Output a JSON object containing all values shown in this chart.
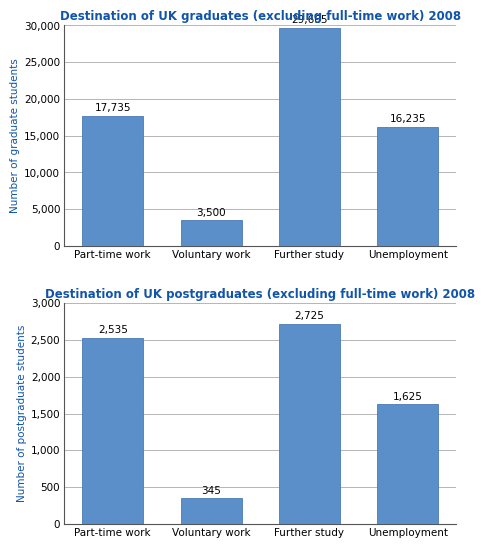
{
  "chart1": {
    "title": "Destination of UK graduates (excluding full-time work) 2008",
    "categories": [
      "Part-time work",
      "Voluntary work",
      "Further study",
      "Unemployment"
    ],
    "values": [
      17735,
      3500,
      29665,
      16235
    ],
    "labels": [
      "17,735",
      "3,500",
      "29,665",
      "16,235"
    ],
    "ylabel": "Number of graduate students",
    "ylim": [
      0,
      30000
    ],
    "yticks": [
      0,
      5000,
      10000,
      15000,
      20000,
      25000,
      30000
    ],
    "ytick_labels": [
      "0",
      "5,000",
      "10,000",
      "15,000",
      "20,000",
      "25,000",
      "30,000"
    ]
  },
  "chart2": {
    "title": "Destination of UK postgraduates (excluding full-time work) 2008",
    "categories": [
      "Part-time work",
      "Voluntary work",
      "Further study",
      "Unemployment"
    ],
    "values": [
      2535,
      345,
      2725,
      1625
    ],
    "labels": [
      "2,535",
      "345",
      "2,725",
      "1,625"
    ],
    "ylabel": "Number of postgraduate students",
    "ylim": [
      0,
      3000
    ],
    "yticks": [
      0,
      500,
      1000,
      1500,
      2000,
      2500,
      3000
    ],
    "ytick_labels": [
      "0",
      "500",
      "1,000",
      "1,500",
      "2,000",
      "2,500",
      "3,000"
    ]
  },
  "bar_color": "#5b8fc9",
  "bar_edge_color": "#4a7ab5",
  "title_color": "#1155aa",
  "ylabel_color": "#1155aa",
  "background_color": "#ffffff",
  "title_fontsize": 8.5,
  "label_fontsize": 7.5,
  "ylabel_fontsize": 7.5,
  "tick_fontsize": 7.5
}
